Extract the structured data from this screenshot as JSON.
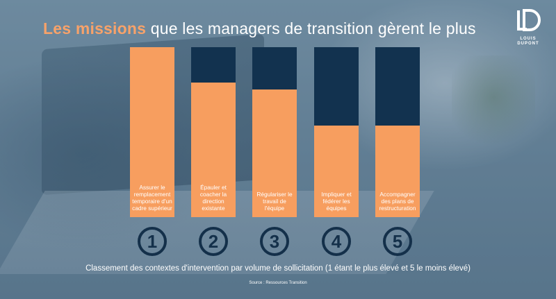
{
  "title": {
    "highlight": "Les missions",
    "rest": " que les managers de transition gèrent le plus"
  },
  "logo": {
    "line1": "LOUIS",
    "line2": "DUPONT"
  },
  "caption": "Classement des contextes d'intervention par volume de sollicitation (1 étant le plus élevé et 5 le moins élevé)",
  "source": "Source :  Ressources Transition",
  "colors": {
    "fill": "#f79e5f",
    "track": "#12324f",
    "title_highlight": "#f7a26a",
    "circle": "#14304a"
  },
  "chart_data": {
    "type": "bar",
    "categories": [
      "Assurer le remplacement temporaire d'un cadre supérieur",
      "Épauler et coacher la direction existante",
      "Régulariser le travail de l'équipe",
      "Impliquer et fédérer les équipes",
      "Accompagner des plans de restructuration"
    ],
    "ranks": [
      "1",
      "2",
      "3",
      "4",
      "5"
    ],
    "values": [
      100,
      79,
      75,
      54,
      54
    ],
    "ylim": [
      0,
      100
    ]
  }
}
